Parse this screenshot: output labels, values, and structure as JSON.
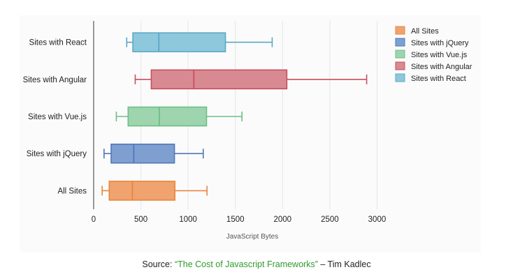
{
  "chart_data": {
    "type": "boxplot",
    "orientation": "horizontal",
    "categories": [
      "All Sites",
      "Sites with jQuery",
      "Sites with Vue.js",
      "Sites with Angular",
      "Sites with React"
    ],
    "series": [
      {
        "name": "All Sites",
        "color": "#f0a36e",
        "stroke": "#e8863f",
        "whisker_low": 90,
        "q1": 165,
        "median": 410,
        "q3": 860,
        "whisker_high": 1200
      },
      {
        "name": "Sites with jQuery",
        "color": "#7f9fd1",
        "stroke": "#4f78b8",
        "whisker_low": 110,
        "q1": 185,
        "median": 425,
        "q3": 855,
        "whisker_high": 1160
      },
      {
        "name": "Sites with Vue.js",
        "color": "#9ed4ae",
        "stroke": "#6cbf86",
        "whisker_low": 240,
        "q1": 365,
        "median": 695,
        "q3": 1195,
        "whisker_high": 1570
      },
      {
        "name": "Sites with Angular",
        "color": "#d98992",
        "stroke": "#c7505d",
        "whisker_low": 440,
        "q1": 610,
        "median": 1060,
        "q3": 2045,
        "whisker_high": 2890
      },
      {
        "name": "Sites with React",
        "color": "#8ec8dc",
        "stroke": "#5aa8c6",
        "whisker_low": 350,
        "q1": 415,
        "median": 690,
        "q3": 1395,
        "whisker_high": 1890
      }
    ],
    "xticks": [
      0,
      500,
      1000,
      1500,
      2000,
      2500,
      3000
    ],
    "xlim": [
      0,
      3300
    ],
    "xlabel": "JavaScript Bytes",
    "ylabel": "",
    "grid": "vertical",
    "legend": {
      "position": "top-right",
      "entries": [
        "All Sites",
        "Sites with jQuery",
        "Sites with Vue.js",
        "Sites with Angular",
        "Sites with React"
      ]
    }
  },
  "source": {
    "prefix": "Source: ",
    "link_text": "“The Cost of Javascript Frameworks”",
    "suffix": " – Tim Kadlec"
  }
}
